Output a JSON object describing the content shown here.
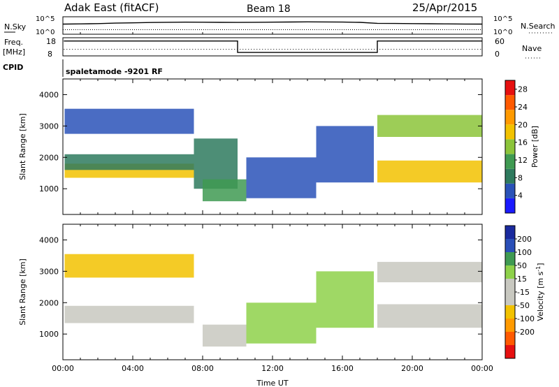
{
  "header": {
    "station": "Adak East (fitACF)",
    "beam": "Beam 18",
    "date": "25/Apr/2015"
  },
  "colors": {
    "power_scale": [
      "#1a1aff",
      "#2a52b8",
      "#2e7a5e",
      "#3f9a52",
      "#8cc43a",
      "#f2c200",
      "#ff9a00",
      "#ff5a00",
      "#e61010"
    ],
    "velocity_scale": [
      "#e61010",
      "#ff5a00",
      "#ff9a00",
      "#f2c200",
      "#c8c8c0",
      "#c8c8c0",
      "#8ed14a",
      "#3f9a52",
      "#2a4fb8",
      "#1a2a9e"
    ],
    "ground_scatter": "#c8c8c0"
  },
  "top_panels": {
    "nsky": {
      "label": "N.Sky",
      "ticks": [
        "10^5",
        "10^0"
      ],
      "right_label": "N.Search",
      "right_ticks": [
        "10^5",
        "10^0"
      ]
    },
    "freq": {
      "label_line1": "Freq.",
      "label_line2": "[MHz]",
      "ticks": [
        "18",
        "8"
      ],
      "right_label": "Nave",
      "right_ticks": [
        "60",
        "0"
      ]
    },
    "cpid": {
      "label": "CPID",
      "mode_text": "spaletamode -9201 RF"
    }
  },
  "chart_data": [
    {
      "type": "line",
      "title": "N.Sky / N.Search",
      "x": [
        0,
        1,
        2,
        3,
        4,
        5,
        6,
        7,
        8,
        9,
        10,
        11,
        12,
        13,
        14,
        15,
        16,
        17,
        18,
        19,
        20,
        21,
        22,
        23,
        24
      ],
      "series": [
        {
          "name": "N.Sky",
          "values": [
            800,
            900,
            1100,
            1500,
            1800,
            2300,
            2600,
            2900,
            2700,
            2500,
            2400,
            2600,
            2900,
            3100,
            3400,
            3300,
            3000,
            2500,
            1300,
            1200,
            1100,
            1000,
            900,
            850,
            800
          ]
        },
        {
          "name": "N.Search",
          "values": [
            20,
            20,
            20,
            20,
            20,
            20,
            20,
            20,
            20,
            20,
            20,
            20,
            20,
            20,
            20,
            20,
            20,
            20,
            20,
            20,
            20,
            20,
            20,
            20,
            20
          ]
        }
      ],
      "ylim": [
        1,
        100000
      ],
      "yscale": "log"
    },
    {
      "type": "line",
      "title": "Freq. / Nave",
      "series": [
        {
          "name": "Freq.",
          "points": [
            [
              0.05,
              16.2
            ],
            [
              10,
              16.2
            ],
            [
              10,
              9.9
            ],
            [
              18,
              9.9
            ],
            [
              18,
              16.2
            ],
            [
              24,
              16.2
            ]
          ]
        },
        {
          "name": "Nave",
          "points": [
            [
              0.05,
              22
            ],
            [
              24,
              22
            ]
          ]
        }
      ],
      "ylim": [
        8,
        18
      ],
      "ylim_right": [
        0,
        60
      ]
    },
    {
      "type": "heatmap",
      "title": "Power",
      "ylabel": "Slant Range [km]",
      "xlim": [
        0,
        24
      ],
      "ylim": [
        180,
        4500
      ],
      "yticks": [
        1000,
        2000,
        3000,
        4000
      ],
      "colorbar": {
        "label": "Power [dB]",
        "ticks": [
          4,
          8,
          12,
          16,
          20,
          24,
          28
        ],
        "range": [
          0,
          30
        ]
      },
      "bands": [
        {
          "x": [
            0.1,
            7.5
          ],
          "range": [
            1350,
            1800
          ],
          "value": 18
        },
        {
          "x": [
            0.1,
            7.5
          ],
          "range": [
            1600,
            2100
          ],
          "value": 8
        },
        {
          "x": [
            0.1,
            7.5
          ],
          "range": [
            2750,
            3550
          ],
          "value": 6
        },
        {
          "x": [
            7.5,
            10.0
          ],
          "range": [
            1000,
            2600
          ],
          "value": 8
        },
        {
          "x": [
            8.0,
            10.5
          ],
          "range": [
            600,
            1300
          ],
          "value": 10
        },
        {
          "x": [
            10.5,
            14.5
          ],
          "range": [
            700,
            2000
          ],
          "value": 4
        },
        {
          "x": [
            14.5,
            17.8
          ],
          "range": [
            1200,
            3000
          ],
          "value": 5
        },
        {
          "x": [
            18.0,
            24.0
          ],
          "range": [
            1200,
            1900
          ],
          "value": 17
        },
        {
          "x": [
            18.0,
            24.0
          ],
          "range": [
            2650,
            3350
          ],
          "value": 14
        }
      ]
    },
    {
      "type": "heatmap",
      "title": "Velocity",
      "ylabel": "Slant Range [km]",
      "xlabel": "Time UT",
      "xlim": [
        0,
        24
      ],
      "ylim": [
        180,
        4500
      ],
      "xticks": [
        "00:00",
        "04:00",
        "08:00",
        "12:00",
        "16:00",
        "20:00",
        "00:00"
      ],
      "yticks": [
        1000,
        2000,
        3000,
        4000
      ],
      "colorbar": {
        "label": "Velocity [m s^-1]",
        "ticks": [
          200,
          100,
          50,
          15,
          -15,
          -50,
          -100,
          -200
        ],
        "range": [
          -250,
          250
        ]
      },
      "bands": [
        {
          "x": [
            0.1,
            7.5
          ],
          "range": [
            1350,
            1900
          ],
          "value": 0
        },
        {
          "x": [
            0.1,
            7.5
          ],
          "range": [
            2800,
            3550
          ],
          "value": -60
        },
        {
          "x": [
            8.0,
            10.5
          ],
          "range": [
            600,
            1300
          ],
          "value": 0
        },
        {
          "x": [
            10.5,
            14.5
          ],
          "range": [
            700,
            2000
          ],
          "value": 60
        },
        {
          "x": [
            14.5,
            17.8
          ],
          "range": [
            1200,
            3000
          ],
          "value": 60
        },
        {
          "x": [
            18.0,
            24.0
          ],
          "range": [
            1200,
            1950
          ],
          "value": 0
        },
        {
          "x": [
            18.0,
            24.0
          ],
          "range": [
            2650,
            3300
          ],
          "value": 0
        }
      ]
    }
  ],
  "axis_labels": {
    "slant_range": "Slant Range [km]",
    "time": "Time UT",
    "power": "Power [dB]",
    "velocity_prefix": "Velocity [m s",
    "velocity_sup": "-1",
    "velocity_suffix": "]"
  }
}
